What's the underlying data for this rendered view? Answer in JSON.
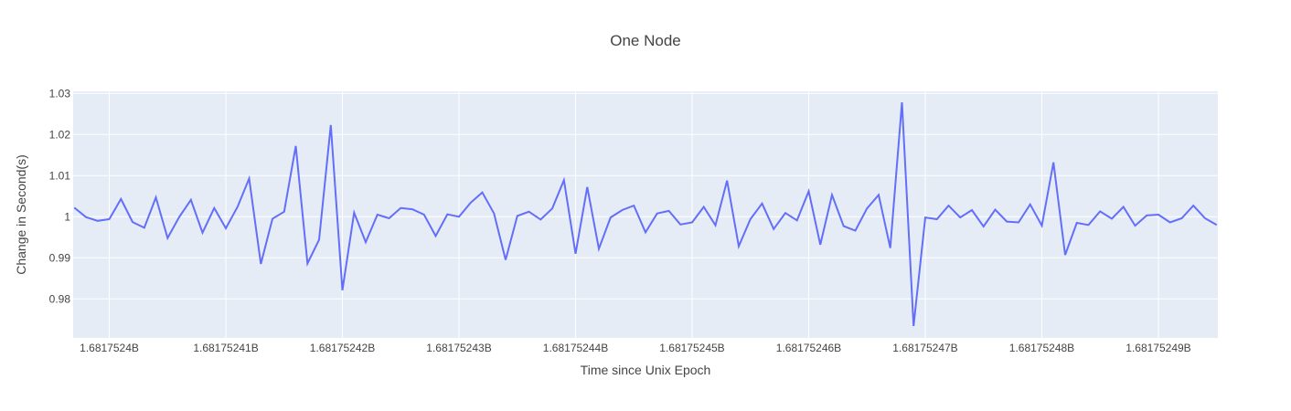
{
  "chart_data": {
    "type": "line",
    "title": "One Node",
    "xlabel": "Time since Unix Epoch",
    "ylabel": "Change in Second(s)",
    "xlim": [
      1681752396.9,
      1681752495.1
    ],
    "ylim": [
      0.9705,
      1.0305
    ],
    "x_ticks": [
      1681752400,
      1681752410,
      1681752420,
      1681752430,
      1681752440,
      1681752450,
      1681752460,
      1681752470,
      1681752480,
      1681752490
    ],
    "x_tick_labels": [
      "1.6817524B",
      "1.68175241B",
      "1.68175242B",
      "1.68175243B",
      "1.68175244B",
      "1.68175245B",
      "1.68175246B",
      "1.68175247B",
      "1.68175248B",
      "1.68175249B"
    ],
    "y_ticks": [
      0.98,
      0.99,
      1.0,
      1.01,
      1.02,
      1.03
    ],
    "y_tick_labels": [
      "0.98",
      "0.99",
      "1",
      "1.01",
      "1.02",
      "1.03"
    ],
    "grid": true,
    "line_color": "#636efa",
    "plot_background": "#e5ecf6",
    "series": [
      {
        "x_start": 1681752397,
        "x_step": 1,
        "values": [
          1.0022,
          0.9999,
          0.999,
          0.9994,
          1.0043,
          0.9987,
          0.9973,
          1.0047,
          0.9948,
          0.9999,
          1.0041,
          0.9961,
          1.0021,
          0.9972,
          1.0024,
          1.0093,
          0.9885,
          0.9995,
          1.0012,
          1.0172,
          0.9886,
          0.9944,
          1.0223,
          0.9821,
          1.001,
          0.9938,
          1.0005,
          0.9996,
          1.0021,
          1.0018,
          1.0005,
          0.9953,
          1.0006,
          1.0,
          1.0034,
          1.0059,
          1.0008,
          0.9895,
          1.0002,
          1.0012,
          0.9993,
          1.002,
          1.0089,
          0.991,
          1.0072,
          0.9922,
          0.9998,
          1.0016,
          1.0027,
          0.9962,
          1.0008,
          1.0014,
          0.9981,
          0.9986,
          1.0024,
          0.9979,
          1.0088,
          0.9928,
          0.9994,
          1.0032,
          0.997,
          1.0009,
          0.9991,
          1.0062,
          0.9932,
          1.0053,
          0.9977,
          0.9966,
          1.002,
          1.0053,
          0.9924,
          1.0278,
          0.9734,
          0.9998,
          0.9994,
          1.0027,
          0.9998,
          1.0016,
          0.9976,
          1.0017,
          0.9988,
          0.9986,
          1.003,
          0.9978,
          1.0132,
          0.9907,
          0.9985,
          0.998,
          1.0013,
          0.9995,
          1.0024,
          0.9978,
          1.0003,
          1.0005,
          0.9986,
          0.9996,
          1.0027,
          0.9996,
          0.998
        ]
      }
    ]
  }
}
